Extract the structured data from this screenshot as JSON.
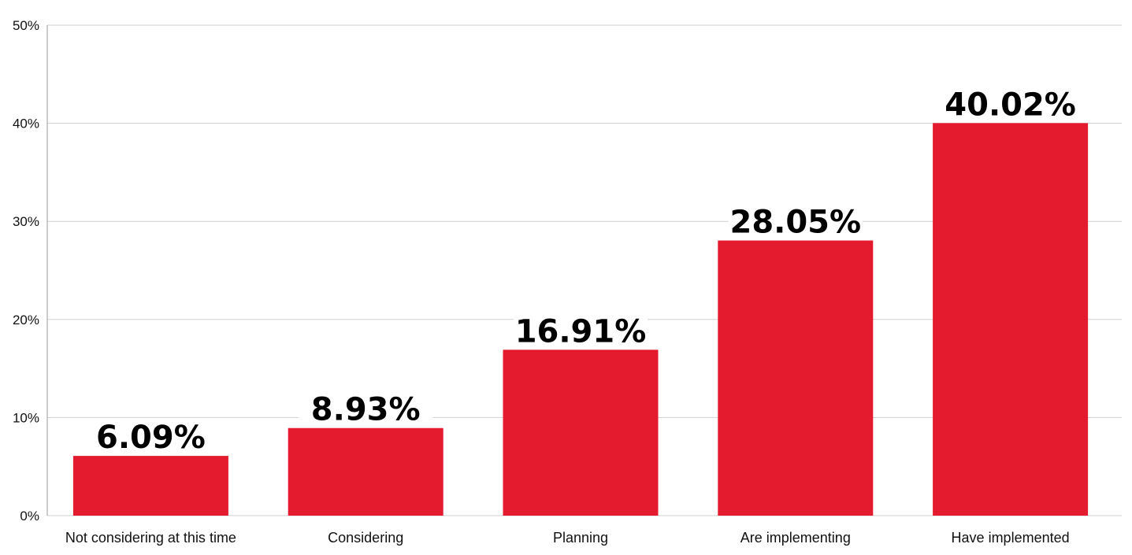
{
  "chart_data": {
    "type": "bar",
    "title": "",
    "xlabel": "",
    "ylabel": "",
    "categories": [
      "Not considering at this time",
      "Considering",
      "Planning",
      "Are implementing",
      "Have implemented"
    ],
    "values": [
      6.09,
      8.93,
      16.91,
      28.05,
      40.02
    ],
    "value_labels": [
      "6.09%",
      "8.93%",
      "16.91%",
      "28.05%",
      "40.02%"
    ],
    "ylim": [
      0,
      50
    ],
    "yticks": [
      0,
      10,
      20,
      30,
      40,
      50
    ],
    "ytick_labels": [
      "0%",
      "10%",
      "20%",
      "30%",
      "40%",
      "50%"
    ],
    "grid": true,
    "legend": "none",
    "bar_color": "#e41b2f",
    "grid_color": "#cfcfcf",
    "axis_color": "#9a9a9a"
  }
}
